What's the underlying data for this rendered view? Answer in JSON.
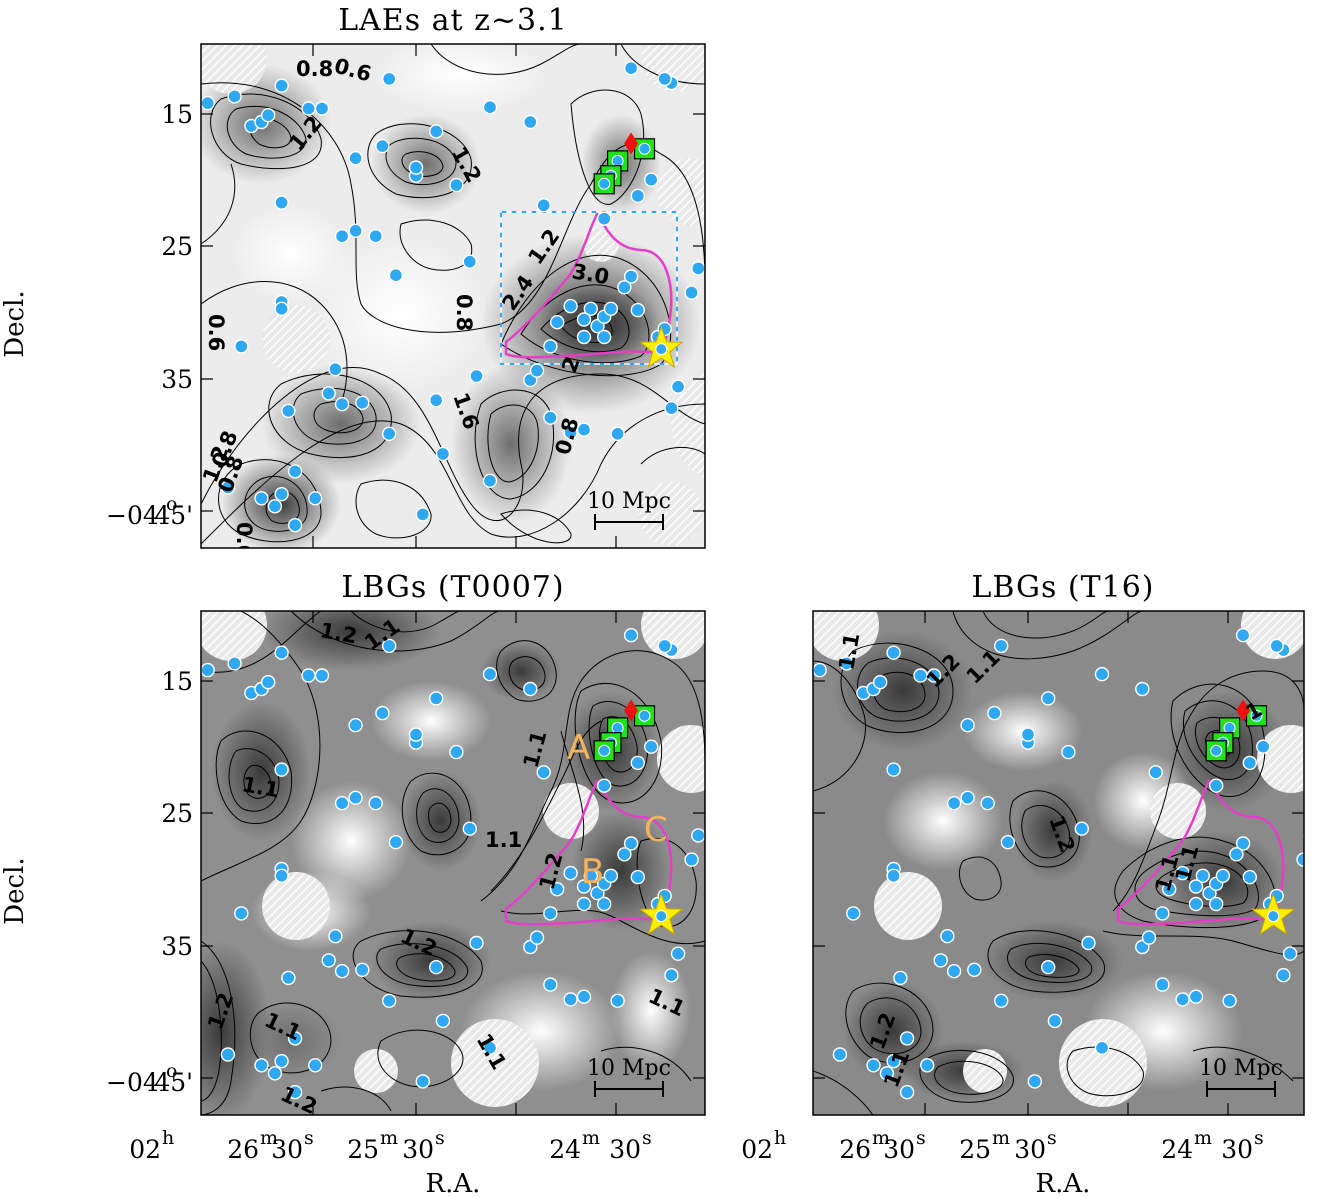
{
  "chart_data": [
    {
      "type": "scatter",
      "title": "LAEs at z~3.1",
      "ylabel": "Decl.",
      "xlabel": "",
      "ytick_labels": [
        "15",
        "25",
        "35",
        "45'"
      ],
      "y_deg_label": "−04",
      "y_deg_sup": "o",
      "ylim_arcmin": [
        10.5,
        48
      ],
      "xlim_arcsec": [
        -3,
        72
      ],
      "contour_labels": [
        "0.8",
        "0.6",
        "1.2",
        "1.2",
        "1.2",
        "3.0",
        "2.4",
        "0.8",
        "0.6",
        "0.8",
        "1.6",
        "0.8",
        "2",
        "0.8",
        "1.2",
        "0.6"
      ],
      "scale_bar": "10 Mpc",
      "galaxies": [
        [
          -2,
          14.9
        ],
        [
          2,
          14.4
        ],
        [
          9,
          13.6
        ],
        [
          25,
          13.1
        ],
        [
          61,
          12.3
        ],
        [
          67,
          13.4
        ],
        [
          66,
          13.1
        ],
        [
          4.5,
          16.6
        ],
        [
          6,
          16.3
        ],
        [
          7,
          15.8
        ],
        [
          13,
          15.3
        ],
        [
          15,
          15.3
        ],
        [
          20,
          19
        ],
        [
          24,
          18.1
        ],
        [
          32,
          17
        ],
        [
          40,
          15.2
        ],
        [
          46,
          16.3
        ],
        [
          29,
          20.3
        ],
        [
          29,
          19.7
        ],
        [
          35,
          21
        ],
        [
          48,
          22.5
        ],
        [
          9,
          22.3
        ],
        [
          20,
          24.4
        ],
        [
          18,
          24.8
        ],
        [
          23,
          24.8
        ],
        [
          26,
          27.7
        ],
        [
          37,
          26.7
        ],
        [
          63,
          18.5
        ],
        [
          64,
          20.6
        ],
        [
          62,
          21.8
        ],
        [
          57,
          23.5
        ],
        [
          61,
          27.8
        ],
        [
          60,
          28.6
        ],
        [
          52,
          30
        ],
        [
          50,
          31.2
        ],
        [
          55,
          30.2
        ],
        [
          56,
          31.5
        ],
        [
          57,
          30.8
        ],
        [
          58,
          30.2
        ],
        [
          54,
          31
        ],
        [
          57,
          32.3
        ],
        [
          54,
          32.3
        ],
        [
          65,
          32.3
        ],
        [
          71,
          27.2
        ],
        [
          70,
          29
        ],
        [
          66,
          31.7
        ],
        [
          62,
          30.3
        ],
        [
          49,
          33
        ],
        [
          9,
          29.7
        ],
        [
          9,
          30.2
        ],
        [
          3,
          33
        ],
        [
          10,
          37.8
        ],
        [
          16,
          36.5
        ],
        [
          18,
          37.3
        ],
        [
          21,
          37.2
        ],
        [
          17,
          34.7
        ],
        [
          25,
          39.5
        ],
        [
          11,
          42.3
        ],
        [
          32,
          37
        ],
        [
          33,
          41
        ],
        [
          38,
          35.2
        ],
        [
          46,
          35.5
        ],
        [
          47,
          34.8
        ],
        [
          49,
          38.3
        ],
        [
          52,
          39.4
        ],
        [
          54,
          39.2
        ],
        [
          59,
          39.5
        ],
        [
          68,
          36
        ],
        [
          67,
          37.6
        ],
        [
          1,
          43.5
        ],
        [
          6,
          44.3
        ],
        [
          8,
          44.9
        ],
        [
          9,
          44
        ],
        [
          11,
          46.3
        ],
        [
          14,
          44.3
        ],
        [
          30,
          45.5
        ],
        [
          40,
          43
        ]
      ],
      "markers": {
        "squares": [
          [
            63,
            18.3
          ],
          [
            59,
            19.2
          ],
          [
            58,
            20.3
          ],
          [
            57,
            20.9
          ]
        ],
        "diamond": [
          61,
          17.9
        ],
        "star": [
          65.5,
          33.2
        ]
      },
      "region_box_arcsec": [
        48,
        22.5,
        71.5,
        34
      ]
    },
    {
      "type": "scatter",
      "title": "LBGs (T0007)",
      "ylabel": "Decl.",
      "xlabel": "R.A.",
      "ytick_labels": [
        "15",
        "25",
        "35",
        "45'"
      ],
      "y_deg_label": "−04",
      "y_deg_sup": "o",
      "xtick_labels": [
        "02",
        "26",
        "30",
        "25",
        "30",
        "24",
        "30"
      ],
      "xtick_sups": [
        "h",
        "m",
        "s",
        "m",
        "s",
        "m",
        "s"
      ],
      "contour_labels": [
        "1.2",
        "1.1",
        "1.1",
        "1.1",
        "1.1",
        "1.2",
        "1.2",
        "1.1",
        "1.2",
        "1.1",
        "1.2",
        "1.1"
      ],
      "region_labels": [
        "A",
        "B",
        "C"
      ],
      "scale_bar": "10 Mpc"
    },
    {
      "type": "scatter",
      "title": "LBGs (T16)",
      "ylabel": "",
      "xlabel": "R.A.",
      "xtick_labels": [
        "02",
        "26",
        "30",
        "25",
        "30",
        "24",
        "30"
      ],
      "xtick_sups": [
        "h",
        "m",
        "s",
        "m",
        "s",
        "m",
        "s"
      ],
      "contour_labels": [
        "1.1",
        "1.2",
        "1.1",
        "1",
        "1.2",
        "1.1",
        "1.1",
        "1.2",
        "1.1"
      ],
      "scale_bar": "10 Mpc"
    }
  ],
  "colors": {
    "galaxy": "#2ea8f2",
    "square": "#22e01a",
    "diamond": "#ee1111",
    "star": "#ffee00",
    "boundary": "#e43fc8",
    "box": "#2ea8f2",
    "region_label": "#f2b45c"
  }
}
